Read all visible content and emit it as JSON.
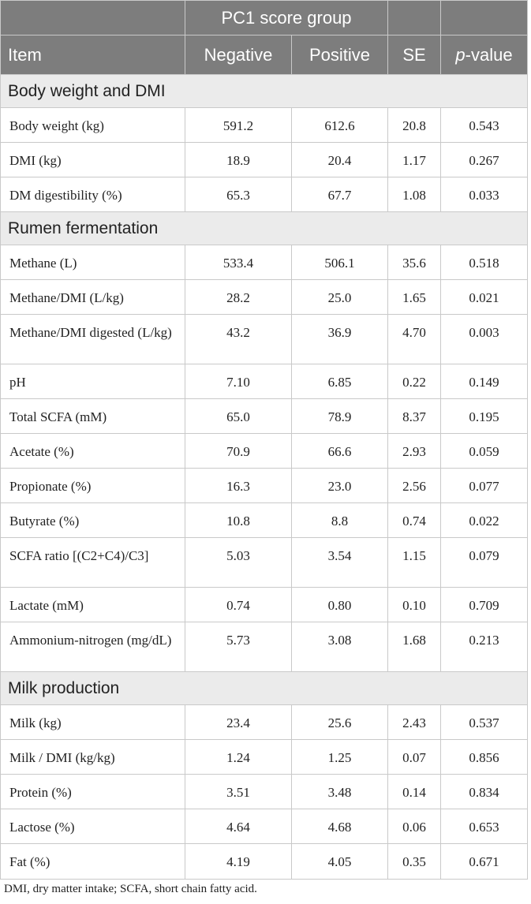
{
  "header": {
    "group_label": "PC1 score group",
    "item": "Item",
    "negative": "Negative",
    "positive": "Positive",
    "se": "SE",
    "pvalue_italic": "p",
    "pvalue_rest": "-value"
  },
  "sections": [
    {
      "title": "Body weight and DMI",
      "rows": [
        {
          "label": "Body weight (kg)",
          "negative": "591.2",
          "positive": "612.6",
          "se": "20.8",
          "p": "0.543"
        },
        {
          "label": "DMI (kg)",
          "negative": "18.9",
          "positive": "20.4",
          "se": "1.17",
          "p": "0.267"
        },
        {
          "label": "DM digestibility (%)",
          "negative": "65.3",
          "positive": "67.7",
          "se": "1.08",
          "p": "0.033"
        }
      ]
    },
    {
      "title": "Rumen fermentation",
      "rows": [
        {
          "label": "Methane (L)",
          "negative": "533.4",
          "positive": "506.1",
          "se": "35.6",
          "p": "0.518"
        },
        {
          "label": "Methane/DMI (L/kg)",
          "negative": "28.2",
          "positive": "25.0",
          "se": "1.65",
          "p": "0.021"
        },
        {
          "label": "Methane/DMI digested (L/kg)",
          "negative": "43.2",
          "positive": "36.9",
          "se": "4.70",
          "p": "0.003"
        },
        {
          "label": "pH",
          "negative": "7.10",
          "positive": "6.85",
          "se": "0.22",
          "p": "0.149"
        },
        {
          "label": "Total SCFA (mM)",
          "negative": "65.0",
          "positive": "78.9",
          "se": "8.37",
          "p": "0.195"
        },
        {
          "label": "Acetate (%)",
          "negative": "70.9",
          "positive": "66.6",
          "se": "2.93",
          "p": "0.059"
        },
        {
          "label": "Propionate (%)",
          "negative": "16.3",
          "positive": "23.0",
          "se": "2.56",
          "p": "0.077"
        },
        {
          "label": "Butyrate (%)",
          "negative": "10.8",
          "positive": "8.8",
          "se": "0.74",
          "p": "0.022"
        },
        {
          "label": "SCFA ratio [(C2+C4)/C3]",
          "negative": "5.03",
          "positive": "3.54",
          "se": "1.15",
          "p": "0.079"
        },
        {
          "label": "Lactate (mM)",
          "negative": "0.74",
          "positive": "0.80",
          "se": "0.10",
          "p": "0.709"
        },
        {
          "label": "Ammonium-nitrogen (mg/dL)",
          "negative": "5.73",
          "positive": "3.08",
          "se": "1.68",
          "p": "0.213"
        }
      ]
    },
    {
      "title": "Milk production",
      "rows": [
        {
          "label": "Milk (kg)",
          "negative": "23.4",
          "positive": "25.6",
          "se": "2.43",
          "p": "0.537"
        },
        {
          "label": "Milk / DMI (kg/kg)",
          "negative": "1.24",
          "positive": "1.25",
          "se": "0.07",
          "p": "0.856"
        },
        {
          "label": "Protein (%)",
          "negative": "3.51",
          "positive": "3.48",
          "se": "0.14",
          "p": "0.834"
        },
        {
          "label": "Lactose (%)",
          "negative": "4.64",
          "positive": "4.68",
          "se": "0.06",
          "p": "0.653"
        },
        {
          "label": "Fat (%)",
          "negative": "4.19",
          "positive": "4.05",
          "se": "0.35",
          "p": "0.671"
        }
      ]
    }
  ],
  "footnote": "DMI, dry matter intake; SCFA, short chain fatty acid."
}
